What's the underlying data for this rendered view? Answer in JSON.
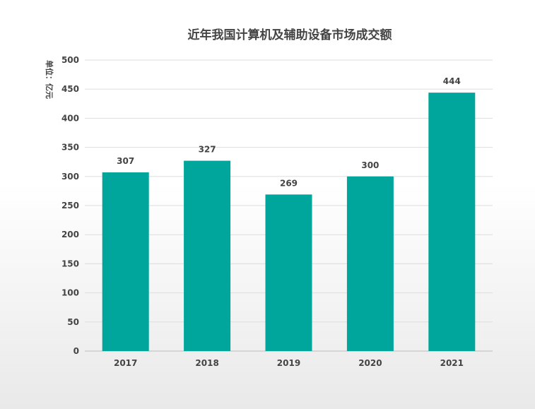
{
  "chart_data": {
    "type": "bar",
    "title": "近年我国计算机及辅助设备市场成交额",
    "ylabel": "单位：亿元",
    "xlabel": "",
    "categories": [
      "2017",
      "2018",
      "2019",
      "2020",
      "2021"
    ],
    "values": [
      307,
      327,
      269,
      300,
      444
    ],
    "ylim": [
      0,
      500
    ],
    "yticks": [
      0,
      50,
      100,
      150,
      200,
      250,
      300,
      350,
      400,
      450,
      500
    ],
    "grid": true,
    "bar_color": "#00A59B",
    "data_labels": true
  }
}
